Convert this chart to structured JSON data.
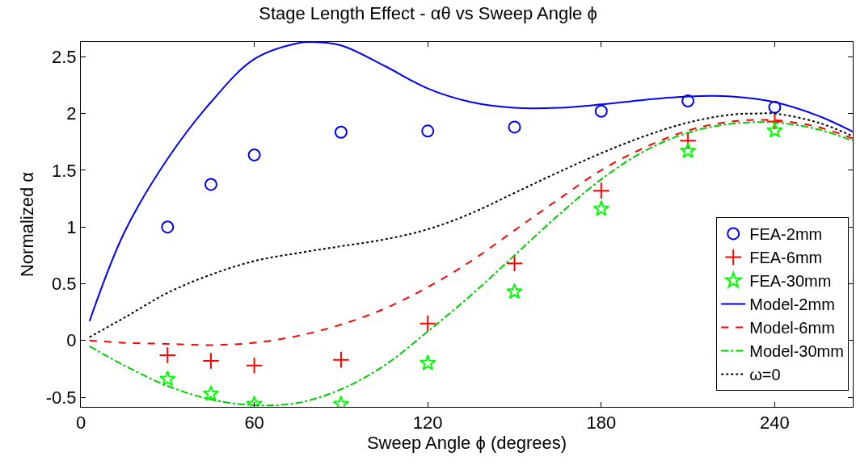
{
  "chart_data": {
    "type": "line",
    "title": "Stage Length Effect - αθ vs Sweep Angle ϕ",
    "xlabel": "Sweep Angle ϕ (degrees)",
    "ylabel": "Normalized α",
    "xlim": [
      0,
      267
    ],
    "ylim": [
      -0.585,
      2.63
    ],
    "xticks": [
      0,
      60,
      120,
      180,
      240
    ],
    "yticks": [
      -0.5,
      0,
      0.5,
      1,
      1.5,
      2,
      2.5
    ],
    "legend": "right",
    "series": [
      {
        "name": "FEA-2mm",
        "type": "scatter",
        "marker": "circle",
        "color": "#0000ff",
        "x": [
          30,
          45,
          60,
          90,
          120,
          150,
          180,
          210,
          240
        ],
        "values": [
          1.0,
          1.375,
          1.635,
          1.835,
          1.845,
          1.88,
          2.02,
          2.11,
          2.055
        ]
      },
      {
        "name": "FEA-6mm",
        "type": "scatter",
        "marker": "cross",
        "color": "#ff0000",
        "x": [
          30,
          45,
          60,
          90,
          120,
          150,
          180,
          210,
          240
        ],
        "values": [
          -0.13,
          -0.18,
          -0.22,
          -0.17,
          0.15,
          0.68,
          1.32,
          1.76,
          1.93
        ]
      },
      {
        "name": "FEA-30mm",
        "type": "scatter",
        "marker": "star",
        "color": "#00ff00",
        "x": [
          30,
          45,
          60,
          90,
          120,
          150,
          180,
          210,
          240
        ],
        "values": [
          -0.34,
          -0.47,
          -0.56,
          -0.56,
          -0.2,
          0.43,
          1.16,
          1.67,
          1.85
        ]
      },
      {
        "name": "Model-2mm",
        "type": "line",
        "line_style": "solid",
        "color": "#0000ff",
        "x": [
          3,
          15,
          30,
          45,
          60,
          75,
          80,
          90,
          105,
          120,
          135,
          150,
          165,
          180,
          195,
          210,
          225,
          240,
          255,
          267
        ],
        "values": [
          0.17,
          0.95,
          1.6,
          2.1,
          2.48,
          2.62,
          2.63,
          2.6,
          2.42,
          2.22,
          2.1,
          2.05,
          2.05,
          2.08,
          2.12,
          2.15,
          2.15,
          2.1,
          1.98,
          1.84
        ]
      },
      {
        "name": "Model-6mm",
        "type": "line",
        "line_style": "dashed",
        "color": "#ff0000",
        "x": [
          3,
          15,
          30,
          45,
          60,
          75,
          90,
          105,
          120,
          135,
          150,
          165,
          180,
          195,
          210,
          225,
          240,
          255,
          267
        ],
        "values": [
          0.0,
          -0.02,
          -0.03,
          -0.04,
          -0.02,
          0.04,
          0.14,
          0.28,
          0.47,
          0.7,
          0.97,
          1.24,
          1.5,
          1.7,
          1.85,
          1.93,
          1.94,
          1.88,
          1.78
        ]
      },
      {
        "name": "Model-30mm",
        "type": "line",
        "line_style": "dashdot",
        "color": "#00cc00",
        "x": [
          3,
          15,
          30,
          45,
          60,
          75,
          90,
          105,
          120,
          135,
          150,
          165,
          180,
          195,
          210,
          225,
          240,
          255,
          267
        ],
        "values": [
          -0.05,
          -0.22,
          -0.4,
          -0.52,
          -0.57,
          -0.55,
          -0.43,
          -0.22,
          0.08,
          0.4,
          0.75,
          1.1,
          1.42,
          1.67,
          1.83,
          1.91,
          1.92,
          1.86,
          1.76
        ]
      },
      {
        "name": "ω=0",
        "type": "line",
        "line_style": "dotted",
        "color": "#000000",
        "x": [
          3,
          15,
          30,
          45,
          60,
          75,
          90,
          105,
          120,
          135,
          150,
          165,
          180,
          195,
          210,
          225,
          235,
          240,
          255,
          267
        ],
        "values": [
          0.03,
          0.2,
          0.42,
          0.58,
          0.7,
          0.77,
          0.83,
          0.89,
          0.98,
          1.12,
          1.3,
          1.48,
          1.65,
          1.8,
          1.92,
          1.99,
          2.0,
          2.0,
          1.92,
          1.8
        ]
      }
    ]
  }
}
